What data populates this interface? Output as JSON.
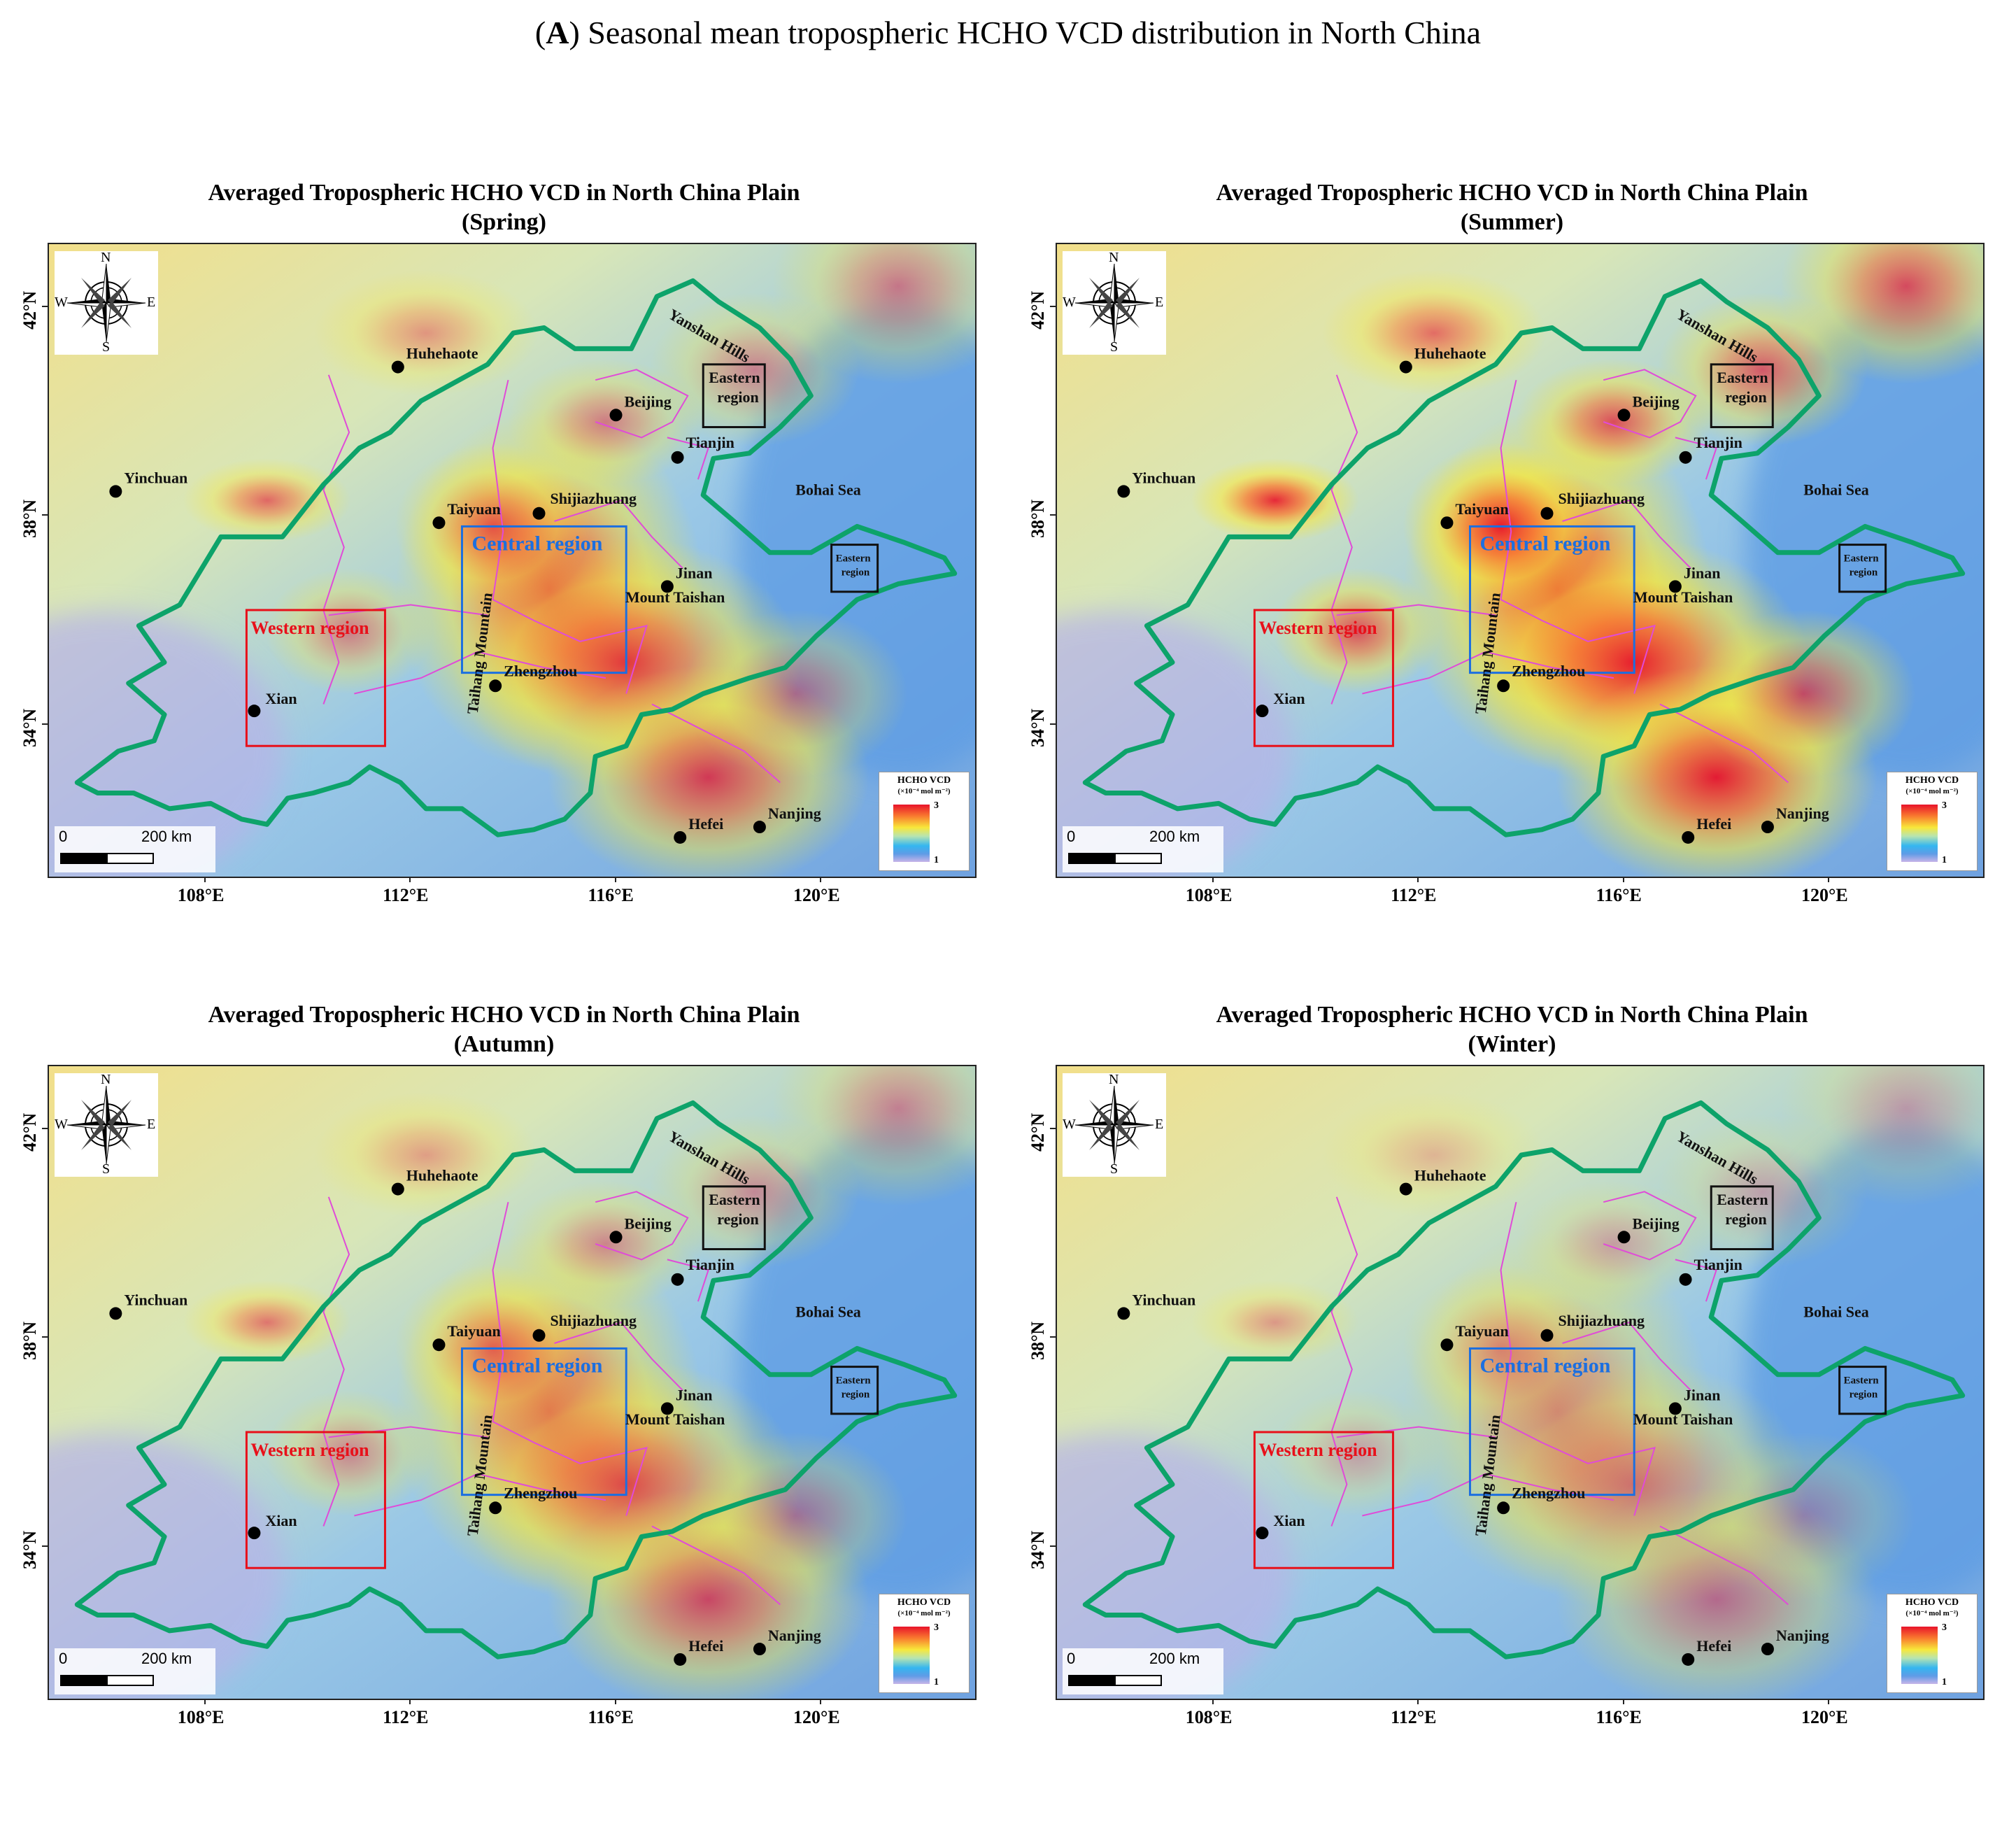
{
  "figure": {
    "panel_letter": "A",
    "caption_open": "(",
    "caption_close": ")",
    "caption_text": " Seasonal mean tropospheric HCHO VCD distribution in North China"
  },
  "panels": [
    {
      "title": "Averaged Tropospheric HCHO VCD in North China Plain",
      "season": "(Spring)",
      "intensity": 0.9
    },
    {
      "title": "Averaged Tropospheric HCHO VCD in North China Plain",
      "season": "(Summer)",
      "intensity": 1.35
    },
    {
      "title": "Averaged Tropospheric HCHO VCD in North China Plain",
      "season": "(Autumn)",
      "intensity": 0.8
    },
    {
      "title": "Averaged Tropospheric HCHO VCD in North China Plain",
      "season": "(Winter)",
      "intensity": 0.55
    }
  ],
  "map": {
    "lat_ticks": [
      "42°N",
      "38°N",
      "34°N"
    ],
    "lon_ticks": [
      "108°E",
      "112°E",
      "116°E",
      "120°E"
    ],
    "cities": [
      {
        "name": "Huhehaote"
      },
      {
        "name": "Beijing"
      },
      {
        "name": "Tianjin"
      },
      {
        "name": "Yinchuan"
      },
      {
        "name": "Taiyuan"
      },
      {
        "name": "Shijiazhuang"
      },
      {
        "name": "Jinan"
      },
      {
        "name": "Xian"
      },
      {
        "name": "Zhengzhou"
      },
      {
        "name": "Hefei"
      },
      {
        "name": "Nanjing"
      }
    ],
    "features": {
      "mount_taishan": "Mount Taishan",
      "taihang_mountain": "Taihang Mountain",
      "yanshan_hills": "Yanshan Hills",
      "bohai_sea": "Bohai Sea"
    },
    "regions": {
      "central": {
        "label": "Central region",
        "color": "#1c6fe0"
      },
      "western": {
        "label": "Western region",
        "color": "#e8101a"
      },
      "eastern": {
        "label_line1": "Eastern",
        "label_line2": "region",
        "color": "#111111"
      }
    },
    "compass": {
      "n": "N",
      "s": "S",
      "e": "E",
      "w": "W",
      "icon": "compass-rose-icon"
    },
    "legend": {
      "title": "HCHO VCD",
      "unit": "(×10⁻⁴ mol m⁻²)",
      "max": "3",
      "min": "1"
    },
    "scalebar": {
      "zero": "0",
      "distance": "200 km"
    },
    "colors": {
      "boundary": "#0da36a",
      "province_lines": "#e04bd8",
      "low": "#5f9be6",
      "high": "#e8132a"
    }
  }
}
